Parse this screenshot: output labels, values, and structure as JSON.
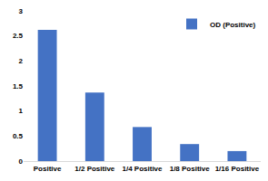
{
  "chart_data": {
    "type": "bar",
    "categories": [
      "Positive",
      "1/2 Positive",
      "1/4 Positive",
      "1/8 Positive",
      "1/16 Positive"
    ],
    "series": [
      {
        "name": "OD (Positive)",
        "color": "#4472c4",
        "values": [
          2.62,
          1.37,
          0.68,
          0.34,
          0.2
        ]
      }
    ],
    "ylim": [
      0,
      3
    ],
    "yticks": [
      0,
      0.5,
      1,
      1.5,
      2,
      2.5,
      3
    ],
    "grid": false,
    "legend": "top-right"
  }
}
